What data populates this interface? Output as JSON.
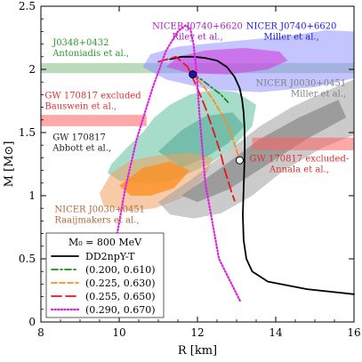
{
  "chart_data": {
    "type": "line",
    "xlabel": "R [km]",
    "ylabel": "M [M⊙]",
    "xlim": [
      8,
      16
    ],
    "ylim": [
      0,
      2.5
    ],
    "xticks": [
      8,
      10,
      12,
      14,
      16
    ],
    "yticks": [
      0,
      0.5,
      1,
      1.5,
      2,
      2.5
    ],
    "tick_labels_x": [
      "8",
      "10",
      "12",
      "14",
      "16"
    ],
    "tick_labels_y": [
      "0",
      "0.5",
      "1",
      "1.5",
      "2",
      "2.5"
    ],
    "grid": false,
    "legend": {
      "placement": "bottom-left",
      "header": "M₀ = 800 MeV",
      "entries": [
        {
          "label": "DD2npY-T",
          "color": "#000000",
          "style": "solid"
        },
        {
          "label": "(0.200, 0.610)",
          "color": "#1a8a1a",
          "style": "dashdot"
        },
        {
          "label": "(0.225, 0.630)",
          "color": "#ff8c1a",
          "style": "dashed"
        },
        {
          "label": "(0.255, 0.650)",
          "color": "#e8141e",
          "style": "longdash"
        },
        {
          "label": "(0.290, 0.670)",
          "color": "#e020e0",
          "style": "dotted"
        }
      ]
    },
    "series": [
      {
        "name": "DD2npY-T",
        "color": "#000000",
        "style": "solid",
        "x": [
          16.0,
          14.8,
          13.8,
          13.4,
          13.25,
          13.18,
          13.16,
          13.18,
          13.2,
          13.21,
          13.2,
          13.18,
          13.14,
          13.08,
          12.95,
          12.75,
          12.5,
          12.2,
          11.9,
          11.6,
          11.3
        ],
        "y": [
          0.22,
          0.26,
          0.32,
          0.4,
          0.5,
          0.65,
          0.85,
          1.05,
          1.25,
          1.4,
          1.55,
          1.66,
          1.76,
          1.85,
          1.94,
          2.02,
          2.07,
          2.09,
          2.1,
          2.1,
          2.08
        ]
      },
      {
        "name": "(0.200, 0.610)",
        "color": "#1a8a1a",
        "style": "dashdot",
        "x": [
          11.88,
          12.1,
          12.35,
          12.6,
          12.78
        ],
        "y": [
          1.96,
          1.92,
          1.86,
          1.8,
          1.74
        ]
      },
      {
        "name": "(0.225, 0.630)",
        "color": "#ff8c1a",
        "style": "dashed",
        "x": [
          11.88,
          12.15,
          12.4,
          12.65,
          12.85,
          12.98,
          13.08
        ],
        "y": [
          1.96,
          1.87,
          1.76,
          1.63,
          1.5,
          1.38,
          1.28
        ]
      },
      {
        "name": "(0.255, 0.650)",
        "color": "#e8141e",
        "style": "longdash",
        "x": [
          11.0,
          11.45,
          11.75,
          12.0,
          12.2,
          12.4,
          12.58,
          12.7,
          12.8,
          12.88,
          12.95
        ],
        "y": [
          2.06,
          2.1,
          2.02,
          1.85,
          1.7,
          1.52,
          1.35,
          1.2,
          1.1,
          1.02,
          0.96
        ]
      },
      {
        "name": "(0.290, 0.670)",
        "color": "#e020e0",
        "style": "dotted",
        "x": [
          9.95,
          10.15,
          10.45,
          10.85,
          11.2,
          11.5,
          11.7,
          11.82,
          11.9,
          11.97,
          12.05,
          12.2,
          12.55,
          13.1
        ],
        "y": [
          0.7,
          1.05,
          1.45,
          1.85,
          2.15,
          2.3,
          2.35,
          2.32,
          2.2,
          2.0,
          1.65,
          1.1,
          0.5,
          0.16
        ]
      }
    ],
    "markers": [
      {
        "x": 11.88,
        "y": 1.96,
        "fill": "#1a1aa0"
      },
      {
        "x": 13.08,
        "y": 1.28,
        "fill": "#ffffff"
      }
    ],
    "annotations": [
      {
        "lines": [
          "NICER J0740+6620",
          "Riley et al.,"
        ],
        "color": "#b020c0",
        "x": 12.0,
        "y": 2.32,
        "anchor": "middle"
      },
      {
        "lines": [
          "NICER J0740+6620",
          "Miller et al.,"
        ],
        "color": "#1a1aee",
        "x": 14.4,
        "y": 2.32,
        "anchor": "middle"
      },
      {
        "lines": [
          "J0348+0432",
          "Antoniadis et al.,"
        ],
        "color": "#2a9a2a",
        "x": 8.3,
        "y": 2.19,
        "anchor": "start"
      },
      {
        "lines": [
          "NICER J0030+0451",
          "Miller et al.,"
        ],
        "color": "#808080",
        "x": 15.8,
        "y": 1.87,
        "anchor": "end"
      },
      {
        "lines": [
          "GW 170817 excluded",
          "Bauswein et al.,"
        ],
        "color": "#e03030",
        "x": 8.1,
        "y": 1.77,
        "anchor": "start"
      },
      {
        "lines": [
          "GW 170817",
          "Abbott et al.,"
        ],
        "color": "#222222",
        "x": 8.3,
        "y": 1.44,
        "anchor": "start"
      },
      {
        "lines": [
          "GW 170817 excluded-",
          "Annala et al.,"
        ],
        "color": "#e03030",
        "x": 14.6,
        "y": 1.27,
        "anchor": "middle"
      },
      {
        "lines": [
          "NICER J0030+0451",
          "Raaijmakers et al.,"
        ],
        "color": "#b06a3a",
        "x": 8.35,
        "y": 0.87,
        "anchor": "start"
      }
    ]
  }
}
